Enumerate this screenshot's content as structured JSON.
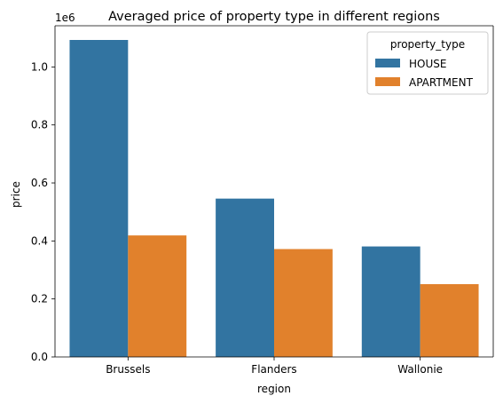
{
  "chart_data": {
    "type": "bar",
    "title": "Averaged price of property type in different regions",
    "xlabel": "region",
    "ylabel": "price",
    "y_scale_label": "1e6",
    "categories": [
      "Brussels",
      "Flanders",
      "Wallonie"
    ],
    "series": [
      {
        "name": "HOUSE",
        "color": "#3274a1",
        "values": [
          1093000,
          546000,
          381000
        ]
      },
      {
        "name": "APARTMENT",
        "color": "#e1812c",
        "values": [
          419000,
          372000,
          251000
        ]
      }
    ],
    "ylim": [
      0,
      1142000
    ],
    "yticks": [
      {
        "value": 0,
        "label": "0.0"
      },
      {
        "value": 200000,
        "label": "0.2"
      },
      {
        "value": 400000,
        "label": "0.4"
      },
      {
        "value": 600000,
        "label": "0.6"
      },
      {
        "value": 800000,
        "label": "0.8"
      },
      {
        "value": 1000000,
        "label": "1.0"
      }
    ],
    "grid": false,
    "legend": {
      "title": "property_type",
      "placement": "top-right"
    }
  }
}
